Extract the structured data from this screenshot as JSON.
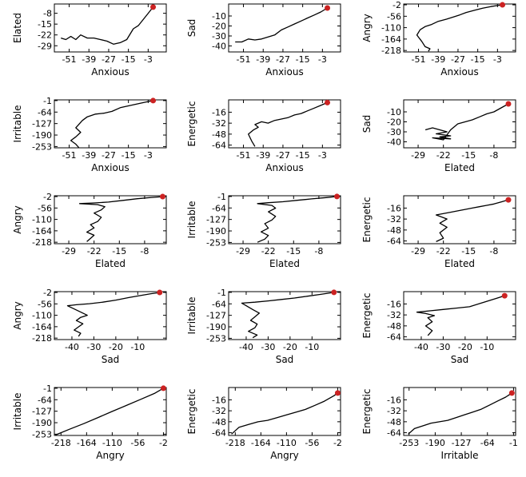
{
  "figure": {
    "line_color": "#000000",
    "endpoint_color": "#cc2222"
  },
  "chart_data": [
    {
      "type": "line",
      "xlabel": "Anxious",
      "ylabel": "Elated",
      "xlim": [
        -60,
        8
      ],
      "ylim": [
        -33,
        -2
      ],
      "xticks": [
        -51,
        -39,
        -27,
        -15,
        -3
      ],
      "yticks": [
        -8,
        -15,
        -22,
        -29
      ],
      "x": [
        -56,
        -53,
        -50,
        -47,
        -44,
        -40,
        -36,
        -32,
        -28,
        -24,
        -20,
        -16,
        -12,
        -9,
        -6,
        -3,
        0
      ],
      "y": [
        -24,
        -25,
        -23,
        -25,
        -22,
        -24,
        -24,
        -25,
        -26,
        -28,
        -27,
        -25,
        -18,
        -16,
        -12,
        -8,
        -4
      ],
      "end": [
        0,
        -4
      ]
    },
    {
      "type": "line",
      "xlabel": "Anxious",
      "ylabel": "Sad",
      "xlim": [
        -60,
        8
      ],
      "ylim": [
        -46,
        2
      ],
      "xticks": [
        -51,
        -39,
        -27,
        -15,
        -3
      ],
      "yticks": [
        -10,
        -20,
        -30,
        -40
      ],
      "x": [
        -56,
        -52,
        -48,
        -44,
        -40,
        -36,
        -32,
        -28,
        -24,
        -20,
        -16,
        -12,
        -8,
        -4,
        0
      ],
      "y": [
        -36,
        -36,
        -33,
        -34,
        -33,
        -31,
        -29,
        -24,
        -21,
        -18,
        -15,
        -12,
        -9,
        -6,
        -2
      ],
      "end": [
        0,
        -2
      ]
    },
    {
      "type": "line",
      "xlabel": "Anxious",
      "ylabel": "Angry",
      "xlim": [
        -60,
        8
      ],
      "ylim": [
        -225,
        2
      ],
      "xticks": [
        -51,
        -39,
        -27,
        -15,
        -3
      ],
      "yticks": [
        -2,
        -56,
        -110,
        -164,
        -218
      ],
      "x": [
        -45,
        -44,
        -47,
        -49,
        -52,
        -50,
        -47,
        -43,
        -39,
        -34,
        -30,
        -26,
        -22,
        -17,
        -12,
        -7,
        -3,
        0
      ],
      "y": [
        -222,
        -210,
        -200,
        -175,
        -145,
        -120,
        -105,
        -95,
        -80,
        -70,
        -60,
        -50,
        -38,
        -28,
        -18,
        -10,
        -5,
        -2
      ],
      "end": [
        0,
        -2
      ]
    },
    {
      "type": "line",
      "xlabel": "Anxious",
      "ylabel": "Irritable",
      "xlim": [
        -60,
        8
      ],
      "ylim": [
        -260,
        3
      ],
      "xticks": [
        -51,
        -39,
        -27,
        -15,
        -3
      ],
      "yticks": [
        -1,
        -64,
        -127,
        -190,
        -253
      ],
      "x": [
        -45,
        -47,
        -50,
        -47,
        -44,
        -47,
        -43,
        -40,
        -35,
        -30,
        -25,
        -20,
        -15,
        -10,
        -5,
        0
      ],
      "y": [
        -260,
        -240,
        -220,
        -200,
        -175,
        -150,
        -110,
        -90,
        -75,
        -70,
        -60,
        -40,
        -30,
        -20,
        -10,
        -1
      ],
      "end": [
        0,
        -1
      ]
    },
    {
      "type": "line",
      "xlabel": "Anxious",
      "ylabel": "Energetic",
      "xlim": [
        -60,
        8
      ],
      "ylim": [
        -68,
        2
      ],
      "xticks": [
        -51,
        -39,
        -27,
        -15,
        -3
      ],
      "yticks": [
        -16,
        -32,
        -48,
        -64
      ],
      "x": [
        -44,
        -46,
        -48,
        -45,
        -42,
        -44,
        -40,
        -36,
        -32,
        -28,
        -24,
        -20,
        -16,
        -12,
        -8,
        -4,
        0
      ],
      "y": [
        -66,
        -58,
        -48,
        -42,
        -38,
        -34,
        -30,
        -32,
        -28,
        -26,
        -24,
        -20,
        -18,
        -14,
        -10,
        -6,
        -2
      ],
      "end": [
        0,
        -2
      ]
    },
    {
      "type": "line",
      "xlabel": "Elated",
      "ylabel": "Sad",
      "xlim": [
        -33,
        -2
      ],
      "ylim": [
        -46,
        2
      ],
      "xticks": [
        -29,
        -22,
        -15,
        -8
      ],
      "yticks": [
        -10,
        -20,
        -30,
        -40
      ],
      "x": [
        -27,
        -25,
        -21,
        -24,
        -20,
        -23,
        -20,
        -25,
        -22,
        -20,
        -18,
        -16,
        -14,
        -12,
        -10,
        -8,
        -6,
        -4
      ],
      "y": [
        -28,
        -26,
        -30,
        -32,
        -34,
        -35,
        -37,
        -36,
        -38,
        -28,
        -22,
        -20,
        -18,
        -15,
        -12,
        -10,
        -6,
        -2
      ],
      "end": [
        -4,
        -2
      ]
    },
    {
      "type": "line",
      "xlabel": "Elated",
      "ylabel": "Angry",
      "xlim": [
        -33,
        -2
      ],
      "ylim": [
        -225,
        2
      ],
      "xticks": [
        -29,
        -22,
        -15,
        -8
      ],
      "yticks": [
        -2,
        -56,
        -110,
        -164,
        -218
      ],
      "x": [
        -24,
        -23,
        -22,
        -24,
        -22,
        -23,
        -21,
        -20,
        -22,
        -20,
        -19,
        -21,
        -26,
        -22,
        -18,
        -14,
        -10,
        -6,
        -3
      ],
      "y": [
        -215,
        -200,
        -185,
        -170,
        -150,
        -135,
        -120,
        -100,
        -80,
        -65,
        -50,
        -40,
        -35,
        -32,
        -28,
        -20,
        -12,
        -6,
        -2
      ],
      "end": [
        -3,
        -2
      ]
    },
    {
      "type": "line",
      "xlabel": "Elated",
      "ylabel": "Irritable",
      "xlim": [
        -33,
        -2
      ],
      "ylim": [
        -260,
        3
      ],
      "xticks": [
        -29,
        -22,
        -15,
        -8
      ],
      "yticks": [
        -1,
        -64,
        -127,
        -190,
        -253
      ],
      "x": [
        -25,
        -23,
        -22,
        -24,
        -22,
        -23,
        -21,
        -20,
        -22,
        -20,
        -21,
        -25,
        -22,
        -18,
        -14,
        -10,
        -6,
        -3
      ],
      "y": [
        -252,
        -235,
        -215,
        -195,
        -175,
        -150,
        -130,
        -110,
        -85,
        -65,
        -50,
        -40,
        -35,
        -30,
        -22,
        -14,
        -7,
        -1
      ],
      "end": [
        -3,
        -1
      ]
    },
    {
      "type": "line",
      "xlabel": "Elated",
      "ylabel": "Energetic",
      "xlim": [
        -33,
        -2
      ],
      "ylim": [
        -68,
        2
      ],
      "xticks": [
        -29,
        -22,
        -15,
        -8
      ],
      "yticks": [
        -16,
        -32,
        -48,
        -64
      ],
      "x": [
        -24,
        -22,
        -23,
        -21,
        -23,
        -21,
        -24,
        -20,
        -18,
        -16,
        -14,
        -12,
        -10,
        -8,
        -6,
        -4
      ],
      "y": [
        -65,
        -60,
        -52,
        -44,
        -38,
        -32,
        -26,
        -22,
        -20,
        -18,
        -16,
        -14,
        -12,
        -10,
        -7,
        -4
      ],
      "end": [
        -4,
        -4
      ]
    },
    {
      "type": "line",
      "xlabel": "Sad",
      "ylabel": "Angry",
      "xlim": [
        -48,
        3
      ],
      "ylim": [
        -225,
        2
      ],
      "xticks": [
        -40,
        -30,
        -20,
        -10
      ],
      "yticks": [
        -2,
        -56,
        -110,
        -164,
        -218
      ],
      "x": [
        -37,
        -36,
        -39,
        -37,
        -35,
        -38,
        -36,
        -33,
        -36,
        -42,
        -38,
        -32,
        -26,
        -20,
        -14,
        -8,
        -4,
        0
      ],
      "y": [
        -210,
        -195,
        -180,
        -165,
        -150,
        -135,
        -120,
        -110,
        -95,
        -65,
        -60,
        -55,
        -48,
        -38,
        -26,
        -15,
        -8,
        -2
      ],
      "end": [
        0,
        -2
      ]
    },
    {
      "type": "line",
      "xlabel": "Sad",
      "ylabel": "Irritable",
      "xlim": [
        -48,
        3
      ],
      "ylim": [
        -260,
        3
      ],
      "xticks": [
        -40,
        -30,
        -20,
        -10
      ],
      "yticks": [
        -1,
        -64,
        -127,
        -190,
        -253
      ],
      "x": [
        -37,
        -35,
        -39,
        -36,
        -35,
        -38,
        -36,
        -34,
        -37,
        -42,
        -36,
        -30,
        -24,
        -18,
        -12,
        -6,
        0
      ],
      "y": [
        -250,
        -235,
        -215,
        -195,
        -175,
        -155,
        -135,
        -115,
        -95,
        -60,
        -55,
        -48,
        -40,
        -32,
        -22,
        -12,
        -1
      ],
      "end": [
        0,
        -1
      ]
    },
    {
      "type": "line",
      "xlabel": "Sad",
      "ylabel": "Energetic",
      "xlim": [
        -48,
        3
      ],
      "ylim": [
        -68,
        2
      ],
      "xticks": [
        -40,
        -30,
        -20,
        -10
      ],
      "yticks": [
        -16,
        -32,
        -48,
        -64
      ],
      "x": [
        -37,
        -35,
        -38,
        -35,
        -37,
        -34,
        -38,
        -42,
        -36,
        -30,
        -24,
        -18,
        -12,
        -6,
        -2
      ],
      "y": [
        -62,
        -55,
        -48,
        -42,
        -36,
        -33,
        -30,
        -28,
        -26,
        -24,
        -22,
        -20,
        -14,
        -8,
        -4
      ],
      "end": [
        -2,
        -4
      ]
    },
    {
      "type": "line",
      "xlabel": "Angry",
      "ylabel": "Irritable",
      "xlim": [
        -232,
        4
      ],
      "ylim": [
        -260,
        3
      ],
      "xticks": [
        -218,
        -164,
        -110,
        -56,
        -2
      ],
      "yticks": [
        -1,
        -64,
        -127,
        -190,
        -253
      ],
      "x": [
        -230,
        -200,
        -170,
        -140,
        -110,
        -80,
        -50,
        -20,
        -2
      ],
      "y": [
        -258,
        -226,
        -195,
        -162,
        -128,
        -95,
        -62,
        -28,
        -1
      ],
      "end": [
        -2,
        -1
      ]
    },
    {
      "type": "line",
      "xlabel": "Angry",
      "ylabel": "Energetic",
      "xlim": [
        -232,
        4
      ],
      "ylim": [
        -68,
        2
      ],
      "xticks": [
        -218,
        -164,
        -110,
        -56,
        -2
      ],
      "yticks": [
        -16,
        -32,
        -48,
        -64
      ],
      "x": [
        -226,
        -210,
        -190,
        -170,
        -150,
        -130,
        -110,
        -90,
        -70,
        -50,
        -30,
        -10,
        -2
      ],
      "y": [
        -66,
        -56,
        -52,
        -48,
        -46,
        -42,
        -38,
        -34,
        -30,
        -24,
        -18,
        -10,
        -6
      ],
      "end": [
        -2,
        -6
      ]
    },
    {
      "type": "line",
      "xlabel": "Irritable",
      "ylabel": "Energetic",
      "xlim": [
        -266,
        4
      ],
      "ylim": [
        -68,
        2
      ],
      "xticks": [
        -253,
        -190,
        -127,
        -64,
        -1
      ],
      "yticks": [
        -16,
        -32,
        -48,
        -64
      ],
      "x": [
        -255,
        -240,
        -220,
        -200,
        -180,
        -160,
        -140,
        -120,
        -100,
        -80,
        -60,
        -40,
        -20,
        -5
      ],
      "y": [
        -66,
        -58,
        -54,
        -50,
        -48,
        -46,
        -42,
        -38,
        -34,
        -30,
        -24,
        -18,
        -12,
        -6
      ],
      "end": [
        -5,
        -6
      ]
    }
  ]
}
